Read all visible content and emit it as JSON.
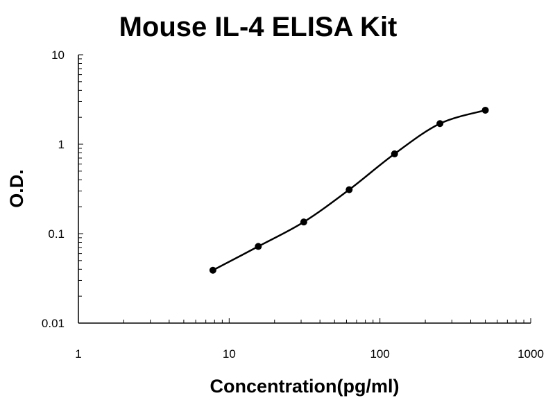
{
  "chart_data": {
    "type": "line",
    "title": "Mouse IL-4 ELISA Kit",
    "xlabel": "Concentration(pg/ml)",
    "ylabel": "O.D.",
    "x_scale": "log",
    "y_scale": "log",
    "xlim": [
      1,
      1000
    ],
    "ylim": [
      0.01,
      10
    ],
    "x_ticks": [
      "1",
      "10",
      "100",
      "1000"
    ],
    "y_ticks": [
      "10",
      "1",
      "0.1",
      "0.01"
    ],
    "x_tick_values": [
      1,
      10,
      100,
      1000
    ],
    "y_tick_values": [
      10,
      1,
      0.1,
      0.01
    ],
    "grid": false,
    "series": [
      {
        "x": [
          7.8,
          15.6,
          31.25,
          62.5,
          125,
          250,
          500
        ],
        "y": [
          0.039,
          0.072,
          0.135,
          0.31,
          0.78,
          1.7,
          2.4
        ]
      }
    ],
    "colors": {
      "line": "#000000",
      "marker": "#000000"
    }
  }
}
